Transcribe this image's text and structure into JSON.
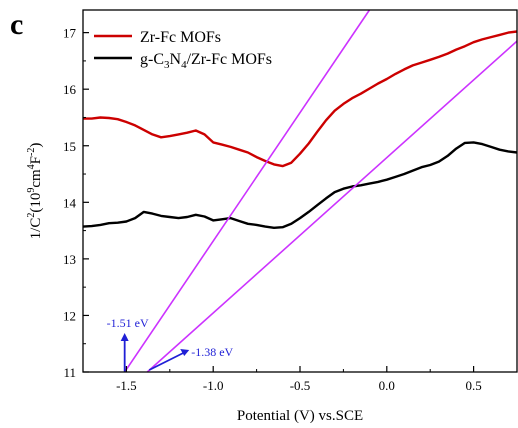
{
  "panel_label": "c",
  "chart_data": {
    "type": "line",
    "xlabel": "Potential (V) vs.SCE",
    "ylabel": {
      "prefix": "1/C",
      "sup1": "2",
      "open": "(10",
      "sup2": "9",
      "mid": "cm",
      "sup3": "4",
      "unit": "F",
      "sup4": "-2",
      "close": ")"
    },
    "xlim": [
      -1.75,
      0.75
    ],
    "ylim": [
      11,
      17.4
    ],
    "xticks": [
      -1.5,
      -1.0,
      -0.5,
      0.0,
      0.5
    ],
    "xtick_labels": [
      "-1.5",
      "-1.0",
      "-0.5",
      "0.0",
      "0.5"
    ],
    "yticks": [
      11,
      12,
      13,
      14,
      15,
      16,
      17
    ],
    "ytick_labels": [
      "11",
      "12",
      "13",
      "14",
      "15",
      "16",
      "17"
    ],
    "grid": false,
    "legend_position": "top-left",
    "series": [
      {
        "name": "Zr-Fc MOFs",
        "color": "#cc0000",
        "x": [
          -1.75,
          -1.7,
          -1.65,
          -1.6,
          -1.55,
          -1.5,
          -1.45,
          -1.4,
          -1.35,
          -1.3,
          -1.25,
          -1.2,
          -1.15,
          -1.1,
          -1.05,
          -1.0,
          -0.95,
          -0.9,
          -0.85,
          -0.8,
          -0.75,
          -0.7,
          -0.65,
          -0.6,
          -0.55,
          -0.5,
          -0.45,
          -0.4,
          -0.35,
          -0.3,
          -0.25,
          -0.2,
          -0.15,
          -0.1,
          -0.05,
          0.0,
          0.05,
          0.1,
          0.15,
          0.2,
          0.25,
          0.3,
          0.35,
          0.4,
          0.45,
          0.5,
          0.55,
          0.6,
          0.65,
          0.7,
          0.75
        ],
        "y": [
          15.48,
          15.48,
          15.5,
          15.49,
          15.47,
          15.42,
          15.36,
          15.28,
          15.2,
          15.15,
          15.17,
          15.2,
          15.23,
          15.27,
          15.2,
          15.06,
          15.02,
          14.98,
          14.93,
          14.88,
          14.8,
          14.73,
          14.67,
          14.64,
          14.7,
          14.86,
          15.04,
          15.25,
          15.45,
          15.62,
          15.74,
          15.84,
          15.92,
          16.01,
          16.1,
          16.18,
          16.27,
          16.35,
          16.42,
          16.47,
          16.52,
          16.57,
          16.63,
          16.7,
          16.76,
          16.83,
          16.88,
          16.92,
          16.96,
          17.0,
          17.02
        ]
      },
      {
        "name": "g-C3N4/Zr-Fc MOFs",
        "name_parts": {
          "a": "g-C",
          "b": "3",
          "c": "N",
          "d": "4",
          "e": "/Zr-Fc MOFs"
        },
        "color": "#000000",
        "x": [
          -1.75,
          -1.7,
          -1.65,
          -1.6,
          -1.55,
          -1.5,
          -1.45,
          -1.4,
          -1.35,
          -1.3,
          -1.25,
          -1.2,
          -1.15,
          -1.1,
          -1.05,
          -1.0,
          -0.95,
          -0.9,
          -0.85,
          -0.8,
          -0.75,
          -0.7,
          -0.65,
          -0.6,
          -0.55,
          -0.5,
          -0.45,
          -0.4,
          -0.35,
          -0.3,
          -0.25,
          -0.2,
          -0.15,
          -0.1,
          -0.05,
          0.0,
          0.05,
          0.1,
          0.15,
          0.2,
          0.25,
          0.3,
          0.35,
          0.4,
          0.45,
          0.5,
          0.55,
          0.6,
          0.65,
          0.7,
          0.75
        ],
        "y": [
          13.57,
          13.58,
          13.6,
          13.63,
          13.64,
          13.66,
          13.72,
          13.83,
          13.8,
          13.76,
          13.74,
          13.72,
          13.74,
          13.78,
          13.75,
          13.68,
          13.7,
          13.72,
          13.67,
          13.62,
          13.6,
          13.57,
          13.55,
          13.56,
          13.62,
          13.72,
          13.83,
          13.95,
          14.07,
          14.18,
          14.24,
          14.28,
          14.3,
          14.33,
          14.36,
          14.4,
          14.45,
          14.5,
          14.56,
          14.62,
          14.66,
          14.72,
          14.82,
          14.95,
          15.05,
          15.06,
          15.03,
          14.98,
          14.93,
          14.9,
          14.88
        ]
      }
    ],
    "tangent_lines": [
      {
        "color": "#cc33ff",
        "from": [
          -1.51,
          11
        ],
        "to": [
          -0.1,
          17.4
        ]
      },
      {
        "color": "#cc33ff",
        "from": [
          -1.38,
          11
        ],
        "to": [
          0.75,
          16.85
        ]
      }
    ],
    "annotations": [
      {
        "text": "-1.51 eV",
        "color": "#1f1fd6",
        "x": -1.51
      },
      {
        "text": "-1.38 eV",
        "color": "#1f1fd6",
        "x": -1.38
      }
    ]
  }
}
